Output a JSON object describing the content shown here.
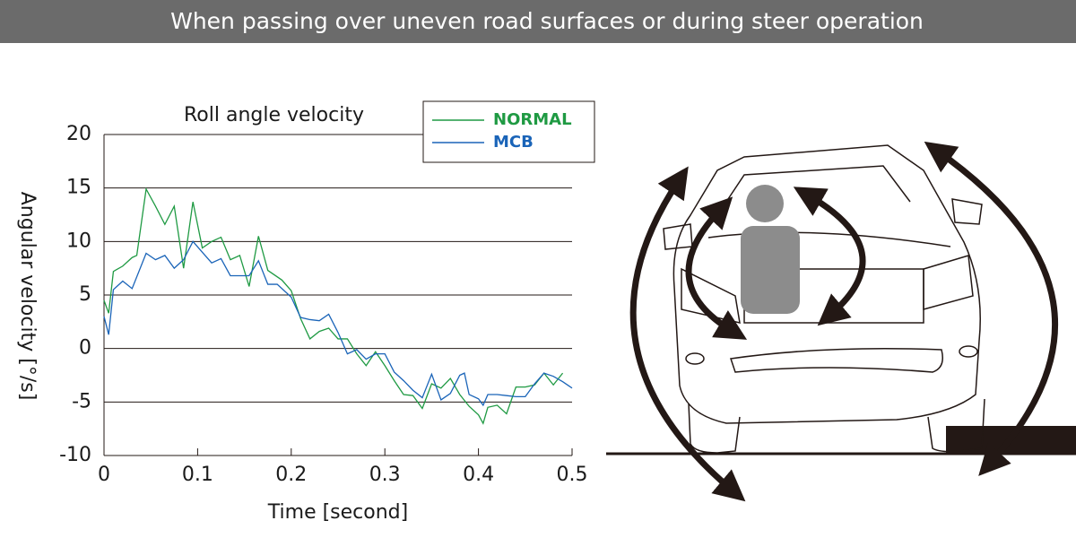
{
  "header": {
    "title": "When passing over uneven road surfaces or during steer operation"
  },
  "chart_data": {
    "type": "line",
    "title": "Roll angle velocity",
    "x_label": "Time [second]",
    "y_label": "Angular velocity [°/s]",
    "xlim": [
      0,
      0.5
    ],
    "ylim": [
      -10,
      20
    ],
    "xticks": [
      0,
      0.1,
      0.2,
      0.3,
      0.4,
      0.5
    ],
    "yticks": [
      -10,
      -5,
      0,
      5,
      10,
      15,
      20
    ],
    "grid": true,
    "series": [
      {
        "name": "NORMAL",
        "color": "#1f9a43",
        "x": [
          0,
          0.005,
          0.01,
          0.02,
          0.03,
          0.035,
          0.045,
          0.055,
          0.065,
          0.075,
          0.085,
          0.095,
          0.105,
          0.115,
          0.125,
          0.135,
          0.145,
          0.155,
          0.165,
          0.175,
          0.19,
          0.2,
          0.21,
          0.22,
          0.23,
          0.24,
          0.25,
          0.26,
          0.27,
          0.28,
          0.29,
          0.3,
          0.31,
          0.32,
          0.33,
          0.34,
          0.35,
          0.36,
          0.37,
          0.38,
          0.39,
          0.4,
          0.405,
          0.41,
          0.42,
          0.43,
          0.44,
          0.45,
          0.46,
          0.47,
          0.48,
          0.49
        ],
        "values": [
          4.5,
          3.3,
          7.2,
          7.7,
          8.5,
          8.7,
          14.9,
          13.3,
          11.6,
          13.3,
          7.5,
          13.7,
          9.4,
          10,
          10.4,
          8.3,
          8.7,
          5.8,
          10.5,
          7.3,
          6.4,
          5.4,
          2.8,
          0.9,
          1.6,
          1.9,
          0.9,
          0.9,
          -0.5,
          -1.6,
          -0.3,
          -1.6,
          -3,
          -4.3,
          -4.4,
          -5.6,
          -3.3,
          -3.7,
          -2.8,
          -4.3,
          -5.4,
          -6.2,
          -7,
          -5.5,
          -5.3,
          -6.1,
          -3.6,
          -3.6,
          -3.4,
          -2.3,
          -3.4,
          -2.3
        ]
      },
      {
        "name": "MCB",
        "color": "#1a64b8",
        "x": [
          0,
          0.005,
          0.01,
          0.02,
          0.03,
          0.045,
          0.055,
          0.065,
          0.075,
          0.085,
          0.095,
          0.105,
          0.115,
          0.125,
          0.135,
          0.145,
          0.155,
          0.165,
          0.175,
          0.185,
          0.2,
          0.21,
          0.22,
          0.23,
          0.24,
          0.25,
          0.26,
          0.27,
          0.28,
          0.29,
          0.3,
          0.31,
          0.32,
          0.33,
          0.34,
          0.35,
          0.36,
          0.37,
          0.38,
          0.385,
          0.39,
          0.4,
          0.405,
          0.41,
          0.42,
          0.43,
          0.44,
          0.45,
          0.46,
          0.47,
          0.48,
          0.49,
          0.5
        ],
        "values": [
          3.0,
          1.3,
          5.5,
          6.3,
          5.6,
          8.9,
          8.3,
          8.7,
          7.5,
          8.3,
          10,
          9,
          8,
          8.4,
          6.8,
          6.8,
          6.8,
          8.2,
          6,
          6,
          4.8,
          2.9,
          2.7,
          2.6,
          3.2,
          1.5,
          -0.5,
          -0.1,
          -1,
          -0.5,
          -0.5,
          -2.2,
          -3,
          -3.9,
          -4.6,
          -2.4,
          -4.8,
          -4.2,
          -2.5,
          -2.3,
          -4.3,
          -4.7,
          -5.3,
          -4.3,
          -4.3,
          -4.4,
          -4.5,
          -4.5,
          -3.3,
          -2.3,
          -2.6,
          -3.1,
          -3.7
        ]
      }
    ]
  }
}
